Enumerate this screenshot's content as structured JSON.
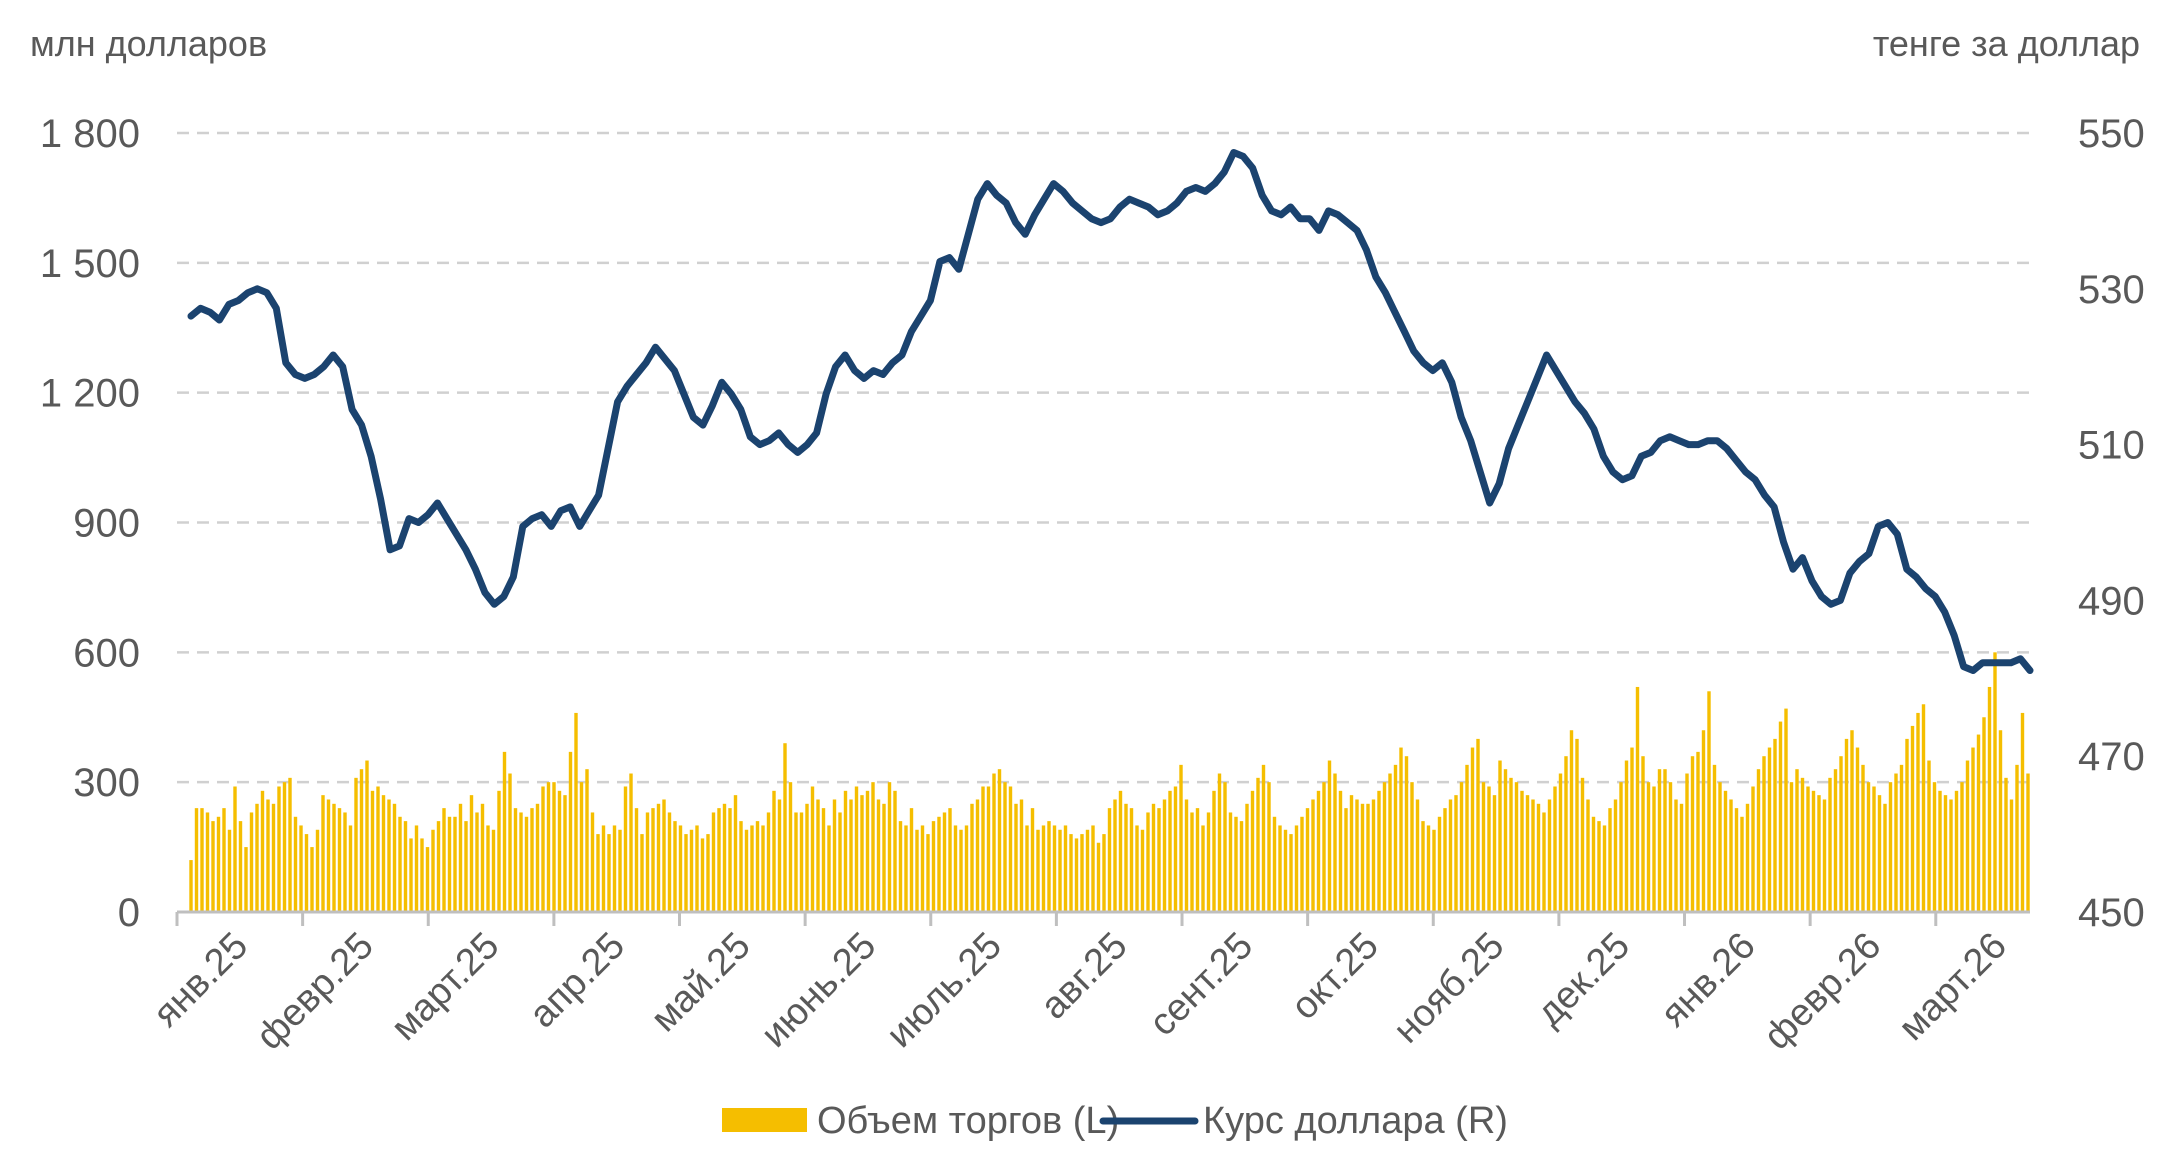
{
  "chart_data": {
    "type": "bar",
    "left_axis": {
      "title": "млн долларов",
      "ticks": [
        0,
        300,
        600,
        900,
        1200,
        1500,
        1800
      ],
      "tick_labels": [
        "0",
        "300",
        "600",
        "900",
        "1 200",
        "1 500",
        "1 800"
      ],
      "range": [
        0,
        1800
      ]
    },
    "right_axis": {
      "title": "тенге за доллар",
      "ticks": [
        450,
        470,
        490,
        510,
        530,
        550
      ],
      "tick_labels": [
        "450",
        "470",
        "490",
        "510",
        "530",
        "550"
      ],
      "range": [
        450,
        550
      ]
    },
    "x_labels": [
      "янв.25",
      "февр.25",
      "март.25",
      "апр.25",
      "май.25",
      "июнь.25",
      "июль.25",
      "авг.25",
      "сент.25",
      "окт.25",
      "нояб.25",
      "дек.25",
      "янв.26",
      "февр.26",
      "март.26"
    ],
    "grid": "horizontal-dashed",
    "legend_position": "bottom-center",
    "series": [
      {
        "name": "Объем торгов (L)",
        "kind": "bar",
        "axis": "left",
        "color": "#F5BE00",
        "values": [
          120,
          240,
          240,
          230,
          210,
          220,
          240,
          190,
          290,
          210,
          150,
          230,
          250,
          280,
          260,
          250,
          290,
          300,
          310,
          220,
          200,
          180,
          150,
          190,
          270,
          260,
          250,
          240,
          230,
          200,
          310,
          330,
          350,
          280,
          290,
          270,
          260,
          250,
          220,
          210,
          170,
          200,
          170,
          150,
          190,
          210,
          240,
          220,
          220,
          250,
          210,
          270,
          230,
          250,
          200,
          190,
          280,
          370,
          320,
          240,
          230,
          220,
          240,
          250,
          290,
          300,
          300,
          280,
          270,
          370,
          460,
          300,
          330,
          230,
          180,
          200,
          180,
          200,
          190,
          290,
          320,
          240,
          180,
          230,
          240,
          250,
          260,
          230,
          210,
          200,
          180,
          190,
          200,
          170,
          180,
          230,
          240,
          250,
          240,
          270,
          210,
          190,
          200,
          210,
          200,
          230,
          280,
          260,
          390,
          300,
          230,
          230,
          250,
          290,
          260,
          240,
          200,
          260,
          230,
          280,
          260,
          290,
          270,
          280,
          300,
          260,
          250,
          300,
          280,
          210,
          200,
          240,
          190,
          200,
          180,
          210,
          220,
          230,
          240,
          200,
          190,
          200,
          250,
          260,
          290,
          290,
          320,
          330,
          300,
          290,
          250,
          260,
          200,
          240,
          190,
          200,
          210,
          200,
          190,
          200,
          180,
          170,
          180,
          190,
          200,
          160,
          180,
          240,
          260,
          280,
          250,
          240,
          200,
          190,
          230,
          250,
          240,
          260,
          280,
          290,
          340,
          260,
          230,
          240,
          200,
          230,
          280,
          320,
          300,
          230,
          220,
          210,
          250,
          280,
          310,
          340,
          300,
          220,
          200,
          190,
          180,
          200,
          220,
          240,
          260,
          280,
          300,
          350,
          320,
          280,
          240,
          270,
          260,
          250,
          250,
          260,
          280,
          300,
          320,
          340,
          380,
          360,
          300,
          260,
          210,
          200,
          190,
          220,
          240,
          260,
          270,
          300,
          340,
          380,
          400,
          300,
          290,
          270,
          350,
          330,
          310,
          300,
          280,
          270,
          260,
          250,
          230,
          260,
          290,
          320,
          360,
          420,
          400,
          310,
          260,
          220,
          210,
          200,
          240,
          260,
          300,
          350,
          380,
          520,
          360,
          300,
          290,
          330,
          330,
          300,
          260,
          250,
          320,
          360,
          370,
          420,
          510,
          340,
          300,
          280,
          260,
          240,
          220,
          250,
          290,
          330,
          360,
          380,
          400,
          440,
          470,
          300,
          330,
          310,
          290,
          280,
          270,
          260,
          310,
          330,
          360,
          400,
          420,
          380,
          340,
          300,
          290,
          270,
          250,
          300,
          320,
          340,
          400,
          430,
          460,
          480,
          350,
          300,
          280,
          270,
          260,
          280,
          300,
          350,
          380,
          410,
          450,
          520,
          600,
          420,
          310,
          260,
          340,
          460,
          320
        ]
      },
      {
        "name": "Курс доллара (R)",
        "kind": "line",
        "axis": "right",
        "color": "#1B436F",
        "values": [
          526.5,
          527.5,
          527.0,
          526.0,
          528.0,
          528.5,
          529.5,
          530.0,
          529.5,
          527.5,
          520.5,
          519.0,
          518.5,
          519.0,
          520.0,
          521.5,
          520.0,
          514.5,
          512.5,
          508.5,
          503.0,
          496.5,
          497.0,
          500.5,
          500.0,
          501.0,
          502.5,
          500.5,
          498.5,
          496.5,
          494.0,
          491.0,
          489.5,
          490.5,
          493.0,
          499.5,
          500.5,
          501.0,
          499.5,
          501.5,
          502.0,
          499.5,
          501.5,
          503.5,
          509.5,
          515.5,
          517.5,
          519.0,
          520.5,
          522.5,
          521.0,
          519.5,
          516.5,
          513.5,
          512.5,
          515.0,
          518.0,
          516.5,
          514.5,
          511.0,
          510.0,
          510.5,
          511.5,
          510.0,
          509.0,
          510.0,
          511.5,
          516.5,
          520.0,
          521.5,
          519.5,
          518.5,
          519.5,
          519.0,
          520.5,
          521.5,
          524.5,
          526.5,
          528.5,
          533.5,
          534.0,
          532.5,
          537.0,
          541.5,
          543.5,
          542.0,
          541.0,
          538.5,
          537.0,
          539.5,
          541.5,
          543.5,
          542.5,
          541.0,
          540.0,
          539.0,
          538.5,
          539.0,
          540.5,
          541.5,
          541.0,
          540.5,
          539.5,
          540.0,
          541.0,
          542.5,
          543.0,
          542.5,
          543.5,
          545.0,
          547.5,
          547.0,
          545.5,
          542.0,
          540.0,
          539.5,
          540.5,
          539.0,
          539.0,
          537.5,
          540.0,
          539.5,
          538.5,
          537.5,
          535.0,
          531.5,
          529.5,
          527.0,
          524.5,
          522.0,
          520.5,
          519.5,
          520.5,
          518.0,
          513.5,
          510.5,
          506.5,
          502.5,
          505.0,
          509.5,
          512.5,
          515.5,
          518.5,
          521.5,
          519.5,
          517.5,
          515.5,
          514.0,
          512.0,
          508.5,
          506.5,
          505.5,
          506.0,
          508.5,
          509.0,
          510.5,
          511.0,
          510.5,
          510.0,
          510.0,
          510.5,
          510.5,
          509.5,
          508.0,
          506.5,
          505.5,
          503.5,
          502.0,
          497.5,
          494.0,
          495.5,
          492.5,
          490.5,
          489.5,
          490.0,
          493.5,
          495.0,
          496.0,
          499.5,
          500.0,
          498.5,
          494.0,
          493.0,
          491.5,
          490.5,
          488.5,
          485.5,
          481.5,
          481.0,
          482.0,
          482.0,
          482.0,
          482.0,
          482.5,
          481.0
        ]
      }
    ]
  },
  "legend": [
    {
      "label": "Объем торгов (L)",
      "color": "#F5BE00"
    },
    {
      "label": "Курс доллара (R)",
      "color": "#1B436F"
    }
  ]
}
